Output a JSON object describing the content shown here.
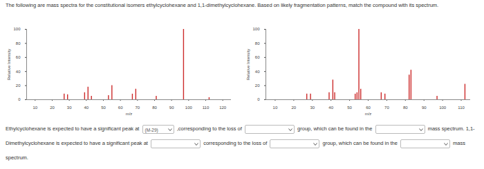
{
  "header": "The following are mass spectra for the constitutional isomers ethylcyclohexane and 1,1-dimethylcyclohexane. Based on likely fragmentation patterns, match the compound with its spectrum.",
  "chart_data": [
    {
      "type": "bar",
      "xlabel": "m/z",
      "ylabel": "Relative Intensity",
      "color": "#cc2a2a",
      "x": [
        27,
        29,
        39,
        41,
        43,
        53,
        55,
        67,
        69,
        81,
        97,
        112
      ],
      "values": [
        8,
        7,
        10,
        18,
        5,
        6,
        20,
        8,
        15,
        5,
        100,
        3
      ],
      "xlim": [
        5,
        125
      ],
      "ylim": [
        0,
        100
      ],
      "xticks": [
        10,
        20,
        30,
        40,
        50,
        60,
        70,
        80,
        90,
        100,
        110,
        120
      ],
      "yticks": [
        0,
        20,
        40,
        60,
        80,
        100
      ]
    },
    {
      "type": "bar",
      "xlabel": "m/z",
      "ylabel": "Relative Intensity",
      "color": "#cc2a2a",
      "x": [
        27,
        29,
        39,
        41,
        42,
        53,
        54,
        55,
        56,
        67,
        69,
        82,
        83,
        97,
        112
      ],
      "values": [
        8,
        8,
        10,
        28,
        10,
        8,
        10,
        100,
        15,
        10,
        8,
        35,
        42,
        5,
        22
      ],
      "xlim": [
        5,
        115
      ],
      "ylim": [
        0,
        100
      ],
      "xticks": [
        10,
        20,
        30,
        40,
        50,
        60,
        70,
        80,
        90,
        100,
        110
      ],
      "yticks": [
        0,
        20,
        40,
        60,
        80,
        100
      ]
    }
  ],
  "question": [
    "Ethylcyclohexane is expected to have a significant peak at",
    {
      "dropdown": "(M-29)"
    },
    ",corresponding to the loss of",
    {
      "dropdown": null
    },
    "group, which can be found in the",
    {
      "dropdown": null
    },
    "mass spectrum. 1,1-Dimethylcyclohexane is expected to have a significant peak at",
    {
      "dropdown": null
    },
    "corresponding to the loss of",
    {
      "dropdown": null
    },
    "group, which can be found in the",
    {
      "dropdown": null
    },
    "mass spectrum."
  ]
}
